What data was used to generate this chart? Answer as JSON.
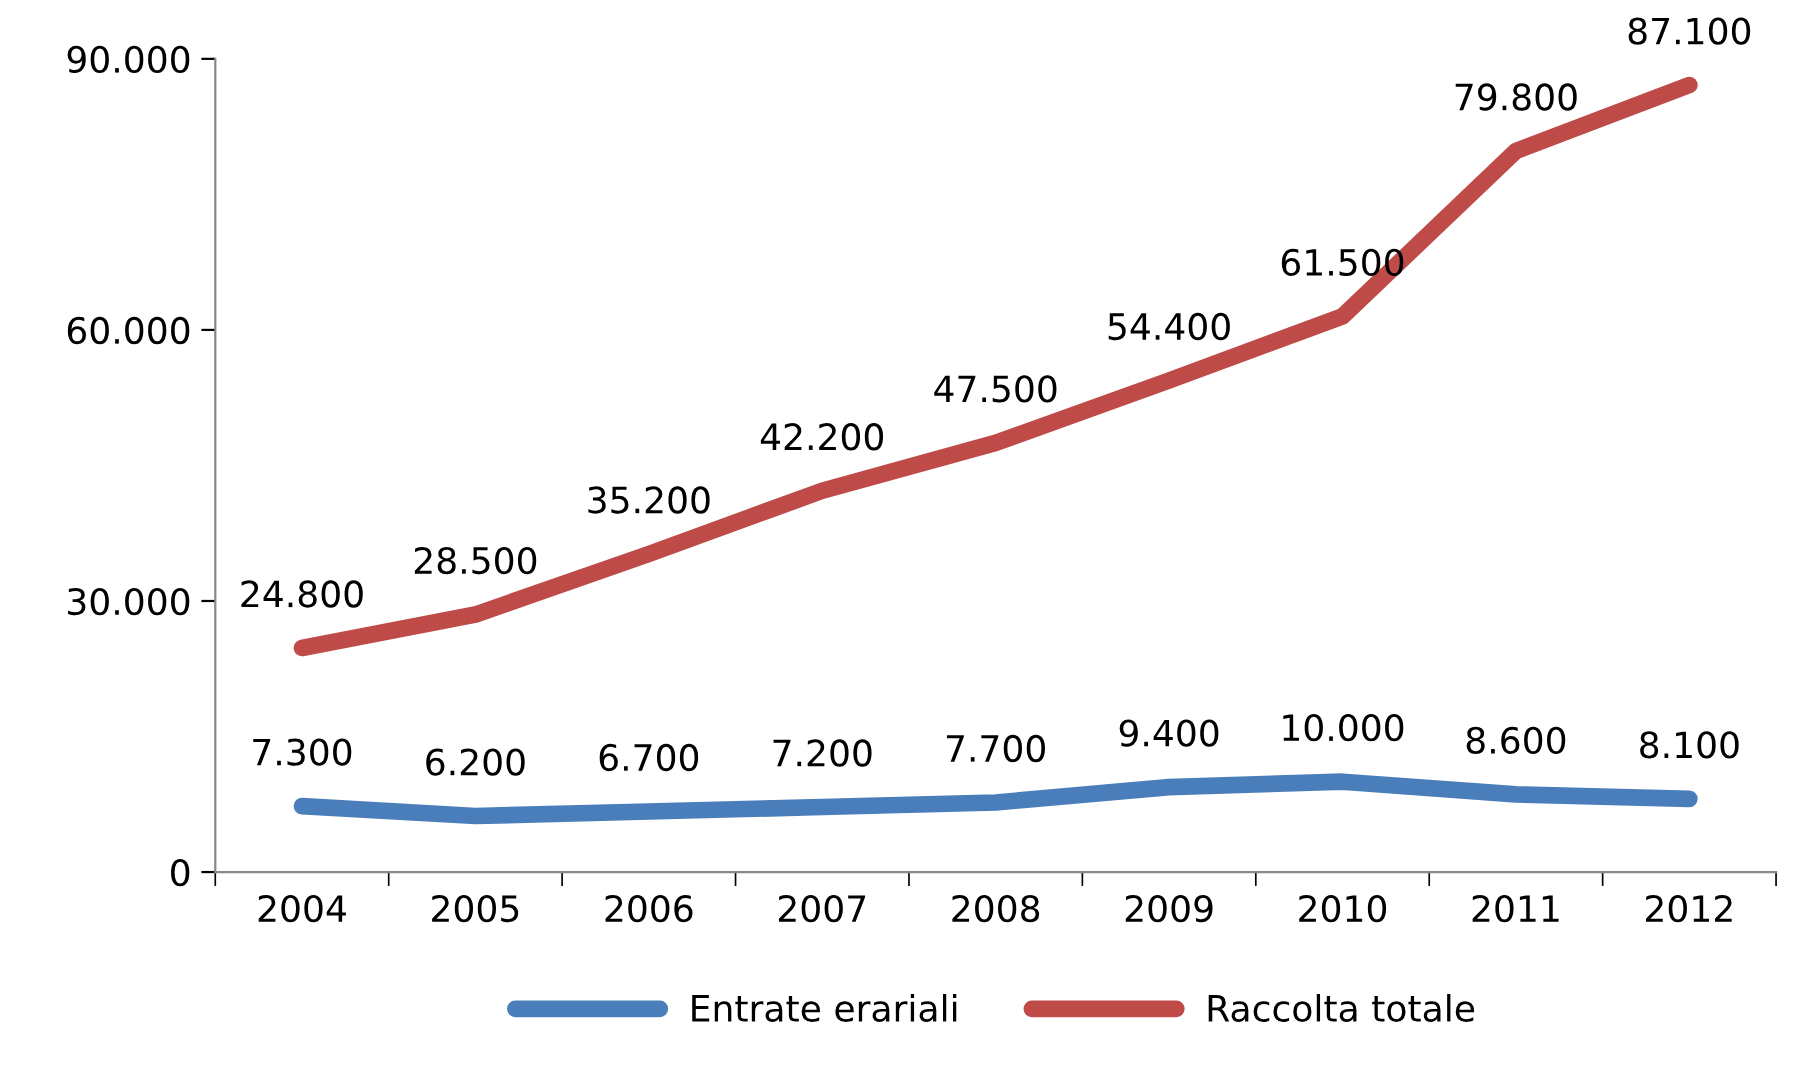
{
  "chart_data": {
    "type": "line",
    "categories": [
      "2004",
      "2005",
      "2006",
      "2007",
      "2008",
      "2009",
      "2010",
      "2011",
      "2012"
    ],
    "series": [
      {
        "name": "Entrate erariali",
        "color": "#4a7ebb",
        "values": [
          7300,
          6200,
          6700,
          7200,
          7700,
          9400,
          10000,
          8600,
          8100
        ],
        "value_labels": [
          "7.300",
          "6.200",
          "6.700",
          "7.200",
          "7.700",
          "9.400",
          "10.000",
          "8.600",
          "8.100"
        ]
      },
      {
        "name": "Raccolta totale",
        "color": "#be4b48",
        "values": [
          24800,
          28500,
          35200,
          42200,
          47500,
          54400,
          61500,
          79800,
          87100
        ],
        "value_labels": [
          "24.800",
          "28.500",
          "35.200",
          "42.200",
          "47.500",
          "54.400",
          "61.500",
          "79.800",
          "87.100"
        ]
      }
    ],
    "ylim": [
      0,
      90000
    ],
    "yticks": [
      {
        "value": 0,
        "label": "0"
      },
      {
        "value": 30000,
        "label": "30.000"
      },
      {
        "value": 60000,
        "label": "60.000"
      },
      {
        "value": 90000,
        "label": "90.000"
      }
    ],
    "grid": false,
    "legend": "bottom",
    "marker": "none",
    "line_style": "solid"
  }
}
